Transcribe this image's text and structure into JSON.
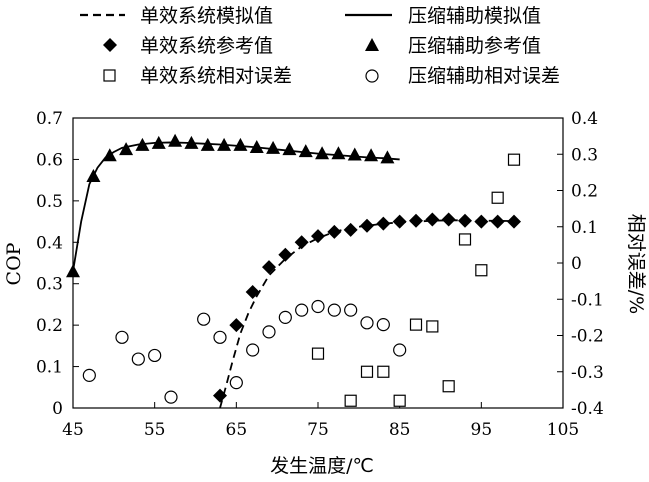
{
  "chart_data": {
    "type": "scatter",
    "xlabel": "发生温度/℃",
    "ylabel_left": "COP",
    "ylabel_right": "相对误差/%",
    "xlim": [
      45,
      105
    ],
    "ylim_left": [
      0,
      0.7
    ],
    "ylim_right": [
      -0.4,
      0.4
    ],
    "x_ticks": [
      45,
      55,
      65,
      75,
      85,
      95,
      105
    ],
    "y_left_ticks": [
      "0",
      "0.1",
      "0.2",
      "0.3",
      "0.4",
      "0.5",
      "0.6",
      "0.7"
    ],
    "y_right_ticks": [
      "-0.4",
      "-0.3",
      "-0.2",
      "-0.1",
      "0",
      "0.1",
      "0.2",
      "0.3",
      "0.4"
    ],
    "legend_placement": "top",
    "series": [
      {
        "name": "单效系统模拟值",
        "style": "dashed-line",
        "axis": "left",
        "x": [
          63,
          63.7,
          64.5,
          65.5,
          66.5,
          67.5,
          69,
          71,
          73,
          75,
          77,
          79,
          81,
          83,
          85,
          87,
          89,
          91,
          93,
          95,
          97,
          99
        ],
        "y": [
          0.0,
          0.05,
          0.11,
          0.18,
          0.23,
          0.27,
          0.32,
          0.36,
          0.39,
          0.41,
          0.425,
          0.435,
          0.44,
          0.445,
          0.448,
          0.45,
          0.452,
          0.453,
          0.453,
          0.452,
          0.452,
          0.451
        ]
      },
      {
        "name": "压缩辅助模拟值",
        "style": "solid-line",
        "axis": "left",
        "x": [
          45,
          46,
          47,
          48,
          49,
          50,
          51,
          53,
          55,
          57,
          59,
          61,
          63,
          65,
          67,
          69,
          71,
          73,
          75,
          77,
          79,
          81,
          83,
          85
        ],
        "y": [
          0.33,
          0.45,
          0.54,
          0.58,
          0.605,
          0.618,
          0.628,
          0.636,
          0.64,
          0.641,
          0.64,
          0.638,
          0.636,
          0.633,
          0.63,
          0.626,
          0.622,
          0.618,
          0.614,
          0.611,
          0.608,
          0.605,
          0.603,
          0.6
        ]
      },
      {
        "name": "单效系统参考值",
        "marker": "diamond-filled",
        "axis": "left",
        "x": [
          63,
          65,
          67,
          69,
          71,
          73,
          75,
          77,
          79,
          81,
          83,
          85,
          87,
          89,
          91,
          93,
          95,
          97,
          99
        ],
        "y": [
          0.03,
          0.2,
          0.28,
          0.34,
          0.37,
          0.4,
          0.415,
          0.425,
          0.43,
          0.44,
          0.445,
          0.45,
          0.452,
          0.455,
          0.455,
          0.452,
          0.45,
          0.45,
          0.45
        ]
      },
      {
        "name": "压缩辅助参考值",
        "marker": "triangle-filled",
        "axis": "left",
        "x": [
          45,
          47.5,
          49.5,
          51.5,
          53.5,
          55.5,
          57.5,
          59.5,
          61.5,
          63.5,
          65.5,
          67.5,
          69.5,
          71.5,
          73.5,
          75.5,
          77.5,
          79.5,
          81.5,
          83.5
        ],
        "y": [
          0.33,
          0.56,
          0.61,
          0.625,
          0.635,
          0.64,
          0.645,
          0.64,
          0.635,
          0.635,
          0.635,
          0.63,
          0.628,
          0.625,
          0.62,
          0.615,
          0.615,
          0.612,
          0.61,
          0.605
        ]
      },
      {
        "name": "单效系统相对误差",
        "marker": "square-open",
        "axis": "right",
        "x": [
          75,
          79,
          81,
          83,
          85,
          87,
          89,
          91,
          93,
          95,
          97,
          99
        ],
        "y": [
          -0.25,
          -0.38,
          -0.3,
          -0.3,
          -0.38,
          -0.17,
          -0.175,
          -0.34,
          0.065,
          -0.02,
          0.18,
          0.285
        ]
      },
      {
        "name": "压缩辅助相对误差",
        "marker": "circle-open",
        "axis": "right",
        "x": [
          47,
          51,
          53,
          55,
          57,
          61,
          63,
          65,
          67,
          69,
          71,
          73,
          75,
          77,
          79,
          81,
          83,
          85
        ],
        "y": [
          -0.31,
          -0.205,
          -0.265,
          -0.255,
          -0.37,
          -0.155,
          -0.205,
          -0.33,
          -0.24,
          -0.19,
          -0.15,
          -0.13,
          -0.12,
          -0.13,
          -0.13,
          -0.165,
          -0.17,
          -0.24
        ]
      }
    ]
  }
}
